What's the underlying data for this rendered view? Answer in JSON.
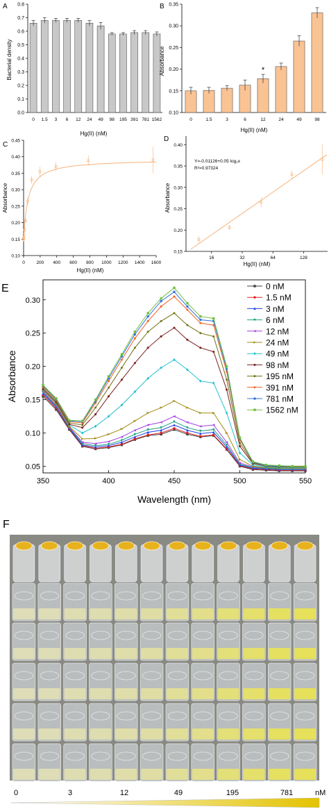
{
  "panels": {
    "A": "A",
    "B": "B",
    "C": "C",
    "D": "D",
    "E": "E",
    "F": "F"
  },
  "colors": {
    "bar_grey": "#c8c8c8",
    "bar_orange": "#f9c394",
    "fit_orange": "#f7b27a",
    "tube_yellow": "#e6e05a",
    "drop_yellow": "#e8b21e",
    "gradient_start": "#ffffff",
    "gradient_end": "#e3c300"
  },
  "chart_data": [
    {
      "panel": "A",
      "type": "bar",
      "xlabel": "Hg(II) (nM)",
      "ylabel": "Bacterial density",
      "categories": [
        "0",
        "1.5",
        "3",
        "6",
        "12",
        "24",
        "49",
        "98",
        "195",
        "391",
        "781",
        "1562"
      ],
      "values": [
        0.66,
        0.68,
        0.68,
        0.68,
        0.68,
        0.66,
        0.64,
        0.58,
        0.58,
        0.59,
        0.59,
        0.58
      ],
      "errors": [
        0.02,
        0.02,
        0.015,
        0.015,
        0.015,
        0.02,
        0.025,
        0.01,
        0.01,
        0.015,
        0.015,
        0.015
      ],
      "ylim": [
        0,
        0.8
      ],
      "yticks": [
        "0.0",
        "0.1",
        "0.2",
        "0.3",
        "0.4",
        "0.5",
        "0.6",
        "0.7",
        "0.8"
      ],
      "color": "#c8c8c8"
    },
    {
      "panel": "B",
      "type": "bar",
      "xlabel": "Hg(II) (nM)",
      "ylabel": "Absorbance",
      "categories": [
        "0",
        "1.5",
        "3",
        "6",
        "12",
        "24",
        "49",
        "98"
      ],
      "values": [
        0.15,
        0.151,
        0.156,
        0.163,
        0.178,
        0.206,
        0.265,
        0.33
      ],
      "errors": [
        0.008,
        0.007,
        0.006,
        0.012,
        0.01,
        0.008,
        0.012,
        0.012
      ],
      "ylim": [
        0.1,
        0.35
      ],
      "yticks": [
        "0.10",
        "0.15",
        "0.20",
        "0.25",
        "0.30",
        "0.35"
      ],
      "annotations": [
        {
          "category": "12",
          "text": "*"
        }
      ],
      "color": "#f9c394"
    },
    {
      "panel": "C",
      "type": "scatter",
      "xlabel": "Hg(II) (nM)",
      "ylabel": "Absorbance",
      "x": [
        0,
        1.5,
        3,
        6,
        12,
        24,
        49,
        98,
        195,
        391,
        781,
        1562
      ],
      "y": [
        0.15,
        0.151,
        0.156,
        0.163,
        0.178,
        0.206,
        0.265,
        0.33,
        0.355,
        0.37,
        0.388,
        0.39
      ],
      "errors": [
        0.008,
        0.007,
        0.006,
        0.012,
        0.01,
        0.008,
        0.012,
        0.012,
        0.015,
        0.014,
        0.016,
        0.04
      ],
      "fit": {
        "type": "saturation",
        "ymin": 0.15,
        "ymax": 0.392,
        "k": 55
      },
      "xlim": [
        0,
        1600
      ],
      "ylim": [
        0.1,
        0.45
      ],
      "xticks": [
        "0",
        "200",
        "400",
        "600",
        "800",
        "1000",
        "1200",
        "1400",
        "1600"
      ],
      "yticks": [
        "0.10",
        "0.15",
        "0.20",
        "0.25",
        "0.30",
        "0.35",
        "0.40",
        "0.45"
      ]
    },
    {
      "panel": "D",
      "type": "scatter",
      "xlabel": "Hg(II) (nM)",
      "ylabel": "Absorbance",
      "log_base": 2,
      "x": [
        12,
        24,
        49,
        98,
        195
      ],
      "y": [
        0.178,
        0.206,
        0.265,
        0.33,
        0.365
      ],
      "errors": [
        0.008,
        0.006,
        0.012,
        0.01,
        0.035
      ],
      "fit": {
        "type": "linear_log2",
        "intercept": -0.01126,
        "slope": 0.05
      },
      "equation": "Y=-0.01126+0.05 log₂x",
      "r_squared": "R²=0.97324",
      "xlim": [
        9,
        220
      ],
      "ylim": [
        0.15,
        0.42
      ],
      "xticks": [
        {
          "value": 16,
          "label": "16"
        },
        {
          "value": 32,
          "label": "32"
        },
        {
          "value": 64,
          "label": "64"
        },
        {
          "value": 128,
          "label": "128"
        }
      ],
      "yticks": [
        "0.15",
        "0.20",
        "0.25",
        "0.30",
        "0.35",
        "0.40"
      ]
    },
    {
      "panel": "E",
      "type": "line",
      "xlabel": "Wavelength (nm)",
      "ylabel": "Absorbance",
      "xlim": [
        350,
        550
      ],
      "ylim": [
        0.04,
        0.33
      ],
      "xticks": [
        "350",
        "400",
        "450",
        "500",
        "550"
      ],
      "yticks": [
        "0.05",
        "0.10",
        "0.15",
        "0.20",
        "0.25",
        "0.30"
      ],
      "legend_position": "right",
      "x": [
        350,
        360,
        370,
        380,
        390,
        400,
        410,
        420,
        430,
        440,
        450,
        460,
        470,
        480,
        490,
        500,
        510,
        520,
        530,
        540,
        550
      ],
      "series": [
        {
          "name": "0 nM",
          "color": "#404040",
          "marker": "square",
          "values": [
            0.155,
            0.135,
            0.105,
            0.08,
            0.076,
            0.078,
            0.082,
            0.09,
            0.096,
            0.098,
            0.105,
            0.098,
            0.094,
            0.096,
            0.075,
            0.05,
            0.045,
            0.044,
            0.043,
            0.043,
            0.043
          ]
        },
        {
          "name": "1.5 nM",
          "color": "#e02020",
          "marker": "circle",
          "values": [
            0.157,
            0.137,
            0.106,
            0.081,
            0.077,
            0.079,
            0.083,
            0.091,
            0.097,
            0.1,
            0.107,
            0.1,
            0.095,
            0.097,
            0.076,
            0.051,
            0.046,
            0.045,
            0.044,
            0.044,
            0.044
          ]
        },
        {
          "name": "3 nM",
          "color": "#2040e0",
          "marker": "triangle",
          "values": [
            0.159,
            0.139,
            0.107,
            0.082,
            0.079,
            0.081,
            0.086,
            0.094,
            0.101,
            0.104,
            0.112,
            0.104,
            0.099,
            0.101,
            0.079,
            0.052,
            0.047,
            0.046,
            0.045,
            0.045,
            0.045
          ]
        },
        {
          "name": "6 nM",
          "color": "#20a080",
          "marker": "triangle-down",
          "values": [
            0.161,
            0.14,
            0.108,
            0.084,
            0.081,
            0.083,
            0.089,
            0.098,
            0.105,
            0.108,
            0.117,
            0.108,
            0.103,
            0.105,
            0.082,
            0.053,
            0.048,
            0.047,
            0.046,
            0.046,
            0.046
          ]
        },
        {
          "name": "12 nM",
          "color": "#a040e0",
          "marker": "triangle-left",
          "values": [
            0.162,
            0.141,
            0.109,
            0.086,
            0.084,
            0.087,
            0.094,
            0.104,
            0.112,
            0.116,
            0.125,
            0.116,
            0.11,
            0.112,
            0.086,
            0.055,
            0.049,
            0.048,
            0.047,
            0.047,
            0.047
          ]
        },
        {
          "name": "24 nM",
          "color": "#a08a10",
          "marker": "triangle-right",
          "values": [
            0.164,
            0.143,
            0.11,
            0.091,
            0.092,
            0.098,
            0.106,
            0.118,
            0.13,
            0.138,
            0.148,
            0.138,
            0.13,
            0.13,
            0.1,
            0.06,
            0.05,
            0.048,
            0.047,
            0.047,
            0.047
          ]
        },
        {
          "name": "49 nM",
          "color": "#20c0d0",
          "marker": "diamond",
          "values": [
            0.165,
            0.145,
            0.112,
            0.1,
            0.11,
            0.125,
            0.142,
            0.162,
            0.182,
            0.198,
            0.21,
            0.195,
            0.178,
            0.175,
            0.13,
            0.07,
            0.052,
            0.049,
            0.048,
            0.048,
            0.048
          ]
        },
        {
          "name": "98 nM",
          "color": "#7a2020",
          "marker": "hexagon",
          "values": [
            0.166,
            0.146,
            0.113,
            0.108,
            0.128,
            0.155,
            0.18,
            0.205,
            0.228,
            0.245,
            0.258,
            0.24,
            0.228,
            0.222,
            0.165,
            0.08,
            0.054,
            0.05,
            0.049,
            0.049,
            0.049
          ]
        },
        {
          "name": "195 nM",
          "color": "#707010",
          "marker": "star",
          "values": [
            0.168,
            0.148,
            0.115,
            0.112,
            0.138,
            0.168,
            0.198,
            0.228,
            0.252,
            0.268,
            0.28,
            0.262,
            0.25,
            0.245,
            0.18,
            0.085,
            0.055,
            0.05,
            0.049,
            0.049,
            0.049
          ]
        },
        {
          "name": "391 nM",
          "color": "#f06020",
          "marker": "pentagon",
          "values": [
            0.17,
            0.15,
            0.117,
            0.115,
            0.145,
            0.178,
            0.21,
            0.242,
            0.268,
            0.29,
            0.305,
            0.285,
            0.265,
            0.262,
            0.192,
            0.09,
            0.056,
            0.051,
            0.05,
            0.05,
            0.05
          ]
        },
        {
          "name": "781 nM",
          "color": "#3070e0",
          "marker": "circle",
          "values": [
            0.171,
            0.151,
            0.118,
            0.117,
            0.148,
            0.182,
            0.215,
            0.248,
            0.275,
            0.298,
            0.312,
            0.29,
            0.27,
            0.268,
            0.196,
            0.092,
            0.056,
            0.051,
            0.05,
            0.05,
            0.05
          ]
        },
        {
          "name": "1562 nM",
          "color": "#70c040",
          "marker": "square",
          "values": [
            0.172,
            0.152,
            0.119,
            0.118,
            0.15,
            0.185,
            0.218,
            0.252,
            0.28,
            0.302,
            0.318,
            0.295,
            0.275,
            0.272,
            0.2,
            0.093,
            0.057,
            0.052,
            0.051,
            0.05,
            0.05
          ]
        }
      ]
    }
  ],
  "photo": {
    "columns": 12,
    "rows": 6,
    "concentration_labels": [
      "0",
      "3",
      "12",
      "49",
      "195",
      "781"
    ],
    "unit": "nM",
    "yellow_intensity": [
      0.15,
      0.16,
      0.2,
      0.22,
      0.28,
      0.33,
      0.45,
      0.55,
      0.72,
      0.85,
      0.95,
      1.0
    ]
  }
}
